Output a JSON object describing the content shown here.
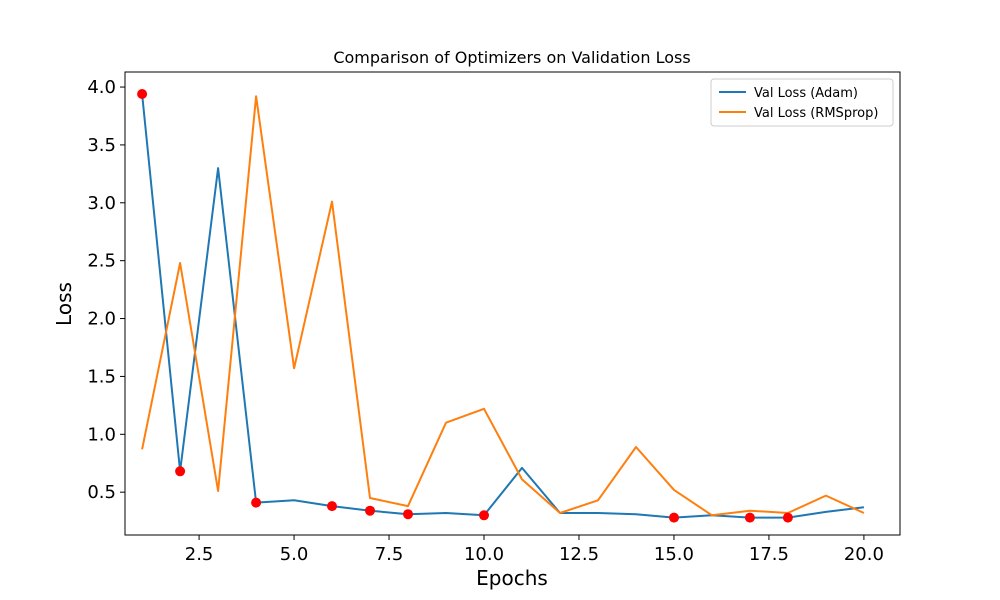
{
  "chart_data": {
    "type": "line",
    "title": "Comparison of Optimizers on Validation Loss",
    "xlabel": "Epochs",
    "ylabel": "Loss",
    "xlim": [
      0.55,
      20.95
    ],
    "ylim": [
      0.13,
      4.13
    ],
    "xticks": [
      2.5,
      5.0,
      7.5,
      10.0,
      12.5,
      15.0,
      17.5,
      20.0
    ],
    "yticks": [
      0.5,
      1.0,
      1.5,
      2.0,
      2.5,
      3.0,
      3.5,
      4.0
    ],
    "x": [
      1,
      2,
      3,
      4,
      5,
      6,
      7,
      8,
      9,
      10,
      11,
      12,
      13,
      14,
      15,
      16,
      17,
      18,
      19,
      20
    ],
    "series": [
      {
        "name": "Val Loss (Adam)",
        "color": "#1f77b4",
        "values": [
          3.94,
          0.68,
          3.3,
          0.41,
          0.43,
          0.38,
          0.34,
          0.31,
          0.32,
          0.3,
          0.71,
          0.32,
          0.32,
          0.31,
          0.28,
          0.3,
          0.28,
          0.28,
          0.33,
          0.37
        ]
      },
      {
        "name": "Val Loss (RMSprop)",
        "color": "#ff7f0e",
        "values": [
          0.87,
          2.48,
          0.51,
          3.92,
          1.57,
          3.01,
          0.45,
          0.38,
          1.1,
          1.22,
          0.61,
          0.32,
          0.43,
          0.89,
          0.52,
          0.3,
          0.34,
          0.32,
          0.47,
          0.32
        ]
      }
    ],
    "markers": {
      "color": "#ff0000",
      "series": "Val Loss (Adam)",
      "x": [
        1,
        2,
        4,
        6,
        7,
        8,
        10,
        15,
        17,
        18
      ]
    },
    "legend": {
      "position": "top-right"
    },
    "grid": false
  }
}
